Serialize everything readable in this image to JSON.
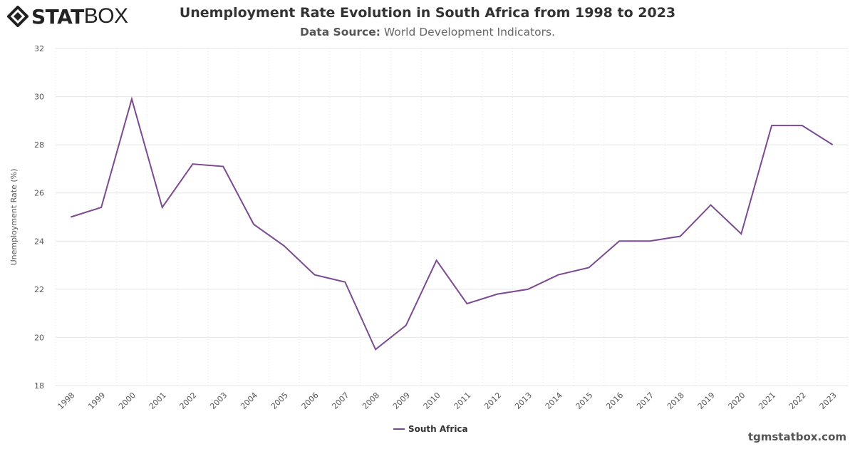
{
  "header": {
    "logo_text": "STATBOX",
    "title": "Unemployment Rate Evolution in South Africa from 1998 to 2023",
    "source_label": "Data Source:",
    "source_value": "World Development Indicators."
  },
  "footer": {
    "site": "tgmstatbox.com"
  },
  "chart_data": {
    "type": "line",
    "title": "Unemployment Rate Evolution in South Africa from 1998 to 2023",
    "xlabel": "",
    "ylabel": "Unemployment Rate (%)",
    "ylim": [
      18,
      32
    ],
    "yticks": [
      18,
      20,
      22,
      24,
      26,
      28,
      30,
      32
    ],
    "categories": [
      "1998",
      "1999",
      "2000",
      "2001",
      "2002",
      "2003",
      "2004",
      "2005",
      "2006",
      "2007",
      "2008",
      "2009",
      "2010",
      "2011",
      "2012",
      "2013",
      "2014",
      "2015",
      "2016",
      "2017",
      "2018",
      "2019",
      "2020",
      "2021",
      "2022",
      "2023"
    ],
    "series": [
      {
        "name": "South Africa",
        "color": "#7b4a91",
        "values": [
          25.0,
          25.4,
          29.9,
          25.4,
          27.2,
          27.1,
          24.7,
          23.8,
          22.6,
          22.3,
          19.5,
          20.5,
          23.2,
          21.4,
          21.8,
          22.0,
          22.6,
          22.9,
          24.0,
          24.0,
          24.2,
          25.5,
          24.3,
          28.8,
          28.8,
          28.0
        ]
      }
    ],
    "grid": true,
    "legend": "bottom-center"
  }
}
